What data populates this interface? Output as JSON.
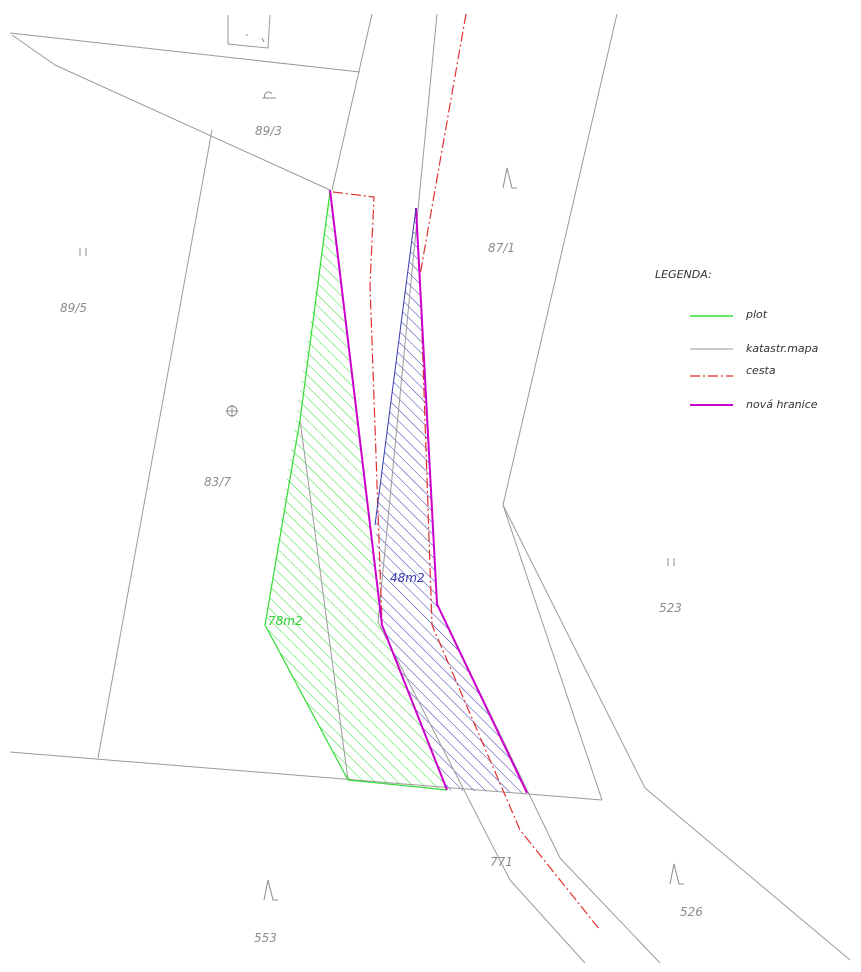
{
  "parcels": {
    "p89_3": "89/3",
    "p89_5": "89/5",
    "p83_7": "83/7",
    "p87_1": "87/1",
    "p523": "523",
    "p771": "771",
    "p553": "553",
    "p526": "526"
  },
  "areas": {
    "green": "78m2",
    "blue": "48m2"
  },
  "legend": {
    "title": "LEGENDA:",
    "items": [
      {
        "label": "plot",
        "style": "solid",
        "color": "#33dd33"
      },
      {
        "label": "katastr.mapa",
        "style": "solid",
        "color": "#9a9a9a"
      },
      {
        "label": "cesta",
        "style": "dash-dot",
        "color": "#e03030"
      },
      {
        "label": "nová hranice",
        "style": "solid-thick",
        "color": "#cc00cc"
      }
    ]
  },
  "colors": {
    "cadastral": "#9a9a9a",
    "fence": "#33dd33",
    "road": "#e03030",
    "new_boundary": "#cc00cc",
    "hatch_blue": "#3a3ab0"
  }
}
